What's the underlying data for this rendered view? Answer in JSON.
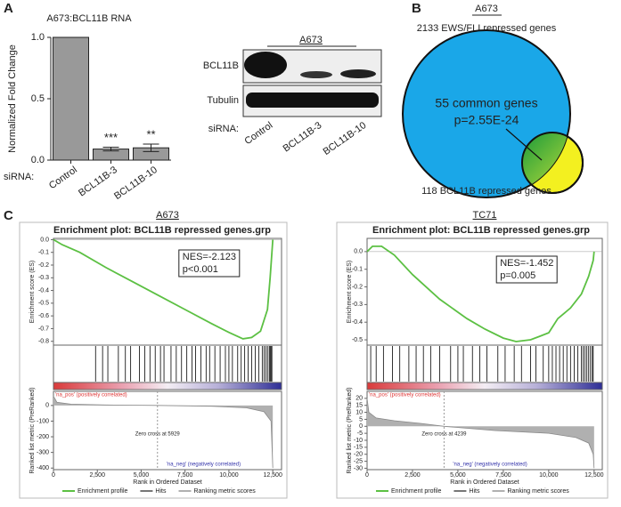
{
  "panel_labels": [
    "A",
    "B",
    "C"
  ],
  "chart_data": [
    {
      "type": "bar",
      "title": "A673:BCL11B RNA",
      "ylabel": "Normalized Fold Change",
      "xlabel": "siRNA:",
      "categories": [
        "Control",
        "BCL11B-3",
        "BCL11B-10"
      ],
      "values": [
        1.0,
        0.09,
        0.1
      ],
      "errors": [
        null,
        0.015,
        0.03
      ],
      "significance": [
        null,
        "***",
        "**"
      ],
      "color": "#999999",
      "ylim": [
        0,
        1
      ],
      "yticks": [
        {
          "value": 0,
          "label": "0.0"
        },
        0.5,
        {
          "value": 1,
          "label": "1.0"
        }
      ]
    },
    {
      "type": "gsea",
      "header": "A673",
      "title": "Enrichment plot: BCL11B repressed genes.grp",
      "stats": [
        "NES=-2.123",
        "p<0.001"
      ],
      "ylabel_es": "Enrichment score (ES)",
      "ylabel_metric": "Ranked list metric (PreRanked)",
      "xlabel": "Rank in Ordered Dataset",
      "pos_label": "'na_pos' (positively correlated)",
      "neg_label": "'na_neg' (negatively correlated)",
      "zero_cross": {
        "value": 5929,
        "label": "Zero cross at 5929"
      },
      "xlim": [
        0,
        13000
      ],
      "xticks": [
        0,
        {
          "value": 2500,
          "label": "2,500"
        },
        {
          "value": 5000,
          "label": "5,000"
        },
        {
          "value": 7500,
          "label": "7,500"
        },
        {
          "value": 10000,
          "label": "10,000"
        },
        {
          "value": 12500,
          "label": "12,500"
        }
      ],
      "es_ylim": [
        -0.83,
        0.01
      ],
      "es_yticks": [
        {
          "value": 0,
          "label": "0.0"
        },
        -0.1,
        -0.2,
        -0.3,
        -0.4,
        -0.5,
        -0.6,
        -0.7,
        -0.8
      ],
      "metric_ylim": [
        -410,
        90
      ],
      "metric_yticks": [
        0,
        -100,
        -200,
        -300,
        -400
      ],
      "series": [
        {
          "name": "Enrichment profile",
          "color": "#5cc043",
          "axis": "es",
          "x": [
            0,
            500,
            1500,
            3000,
            4500,
            6000,
            7500,
            9000,
            10000,
            10800,
            11300,
            11800,
            12200,
            12350,
            12450,
            12500
          ],
          "values": [
            0,
            -0.04,
            -0.1,
            -0.22,
            -0.33,
            -0.44,
            -0.55,
            -0.66,
            -0.73,
            -0.78,
            -0.77,
            -0.72,
            -0.55,
            -0.3,
            -0.1,
            0
          ]
        },
        {
          "name": "Hits",
          "color": "#000000",
          "axis": "hits",
          "x": [
            2400,
            2800,
            3100,
            3700,
            4100,
            4400,
            4900,
            5200,
            5500,
            5800,
            6100,
            6300,
            6700,
            7000,
            7300,
            7600,
            7900,
            8100,
            8400,
            8700,
            8900,
            9200,
            9500,
            9800,
            10000,
            10200,
            10500,
            10700,
            10900,
            11100,
            11300,
            11500,
            11700,
            11900,
            12000,
            12100,
            12200,
            12300,
            12350,
            12400,
            12450
          ]
        },
        {
          "name": "Ranking metric scores",
          "color": "#b0b0b0",
          "axis": "metric",
          "x": [
            0,
            200,
            1000,
            3000,
            5929,
            9000,
            11000,
            12000,
            12400,
            12500
          ],
          "values": [
            60,
            20,
            8,
            3,
            0,
            -5,
            -15,
            -40,
            -100,
            -400
          ]
        }
      ]
    },
    {
      "type": "gsea",
      "header": "TC71",
      "title": "Enrichment plot: BCL11B repressed genes.grp",
      "stats": [
        "NES=-1.452",
        "p=0.005"
      ],
      "ylabel_es": "Enrichment score (ES)",
      "ylabel_metric": "Ranked list metric (PreRanked)",
      "xlabel": "Rank in Ordered Dataset",
      "pos_label": "'na_pos' (positively correlated)",
      "neg_label": "'na_neg' (negatively correlated)",
      "zero_cross": {
        "value": 4239,
        "label": "Zero cross at 4239"
      },
      "xlim": [
        0,
        12950
      ],
      "xticks": [
        0,
        {
          "value": 2500,
          "label": "2,500"
        },
        {
          "value": 5000,
          "label": "5,000"
        },
        {
          "value": 7500,
          "label": "7,500"
        },
        {
          "value": 10000,
          "label": "10,000"
        },
        {
          "value": 12500,
          "label": "12,500"
        }
      ],
      "es_ylim": [
        -0.53,
        0.075
      ],
      "es_yticks": [
        {
          "value": 0,
          "label": "0.0"
        },
        -0.1,
        -0.2,
        -0.3,
        -0.4,
        -0.5
      ],
      "metric_ylim": [
        -31,
        25
      ],
      "metric_yticks": [
        20,
        15,
        10,
        5,
        0,
        -5,
        -10,
        -15,
        -20,
        -25,
        -30
      ],
      "series": [
        {
          "name": "Enrichment profile",
          "color": "#5cc043",
          "axis": "es",
          "x": [
            0,
            300,
            800,
            1500,
            2500,
            4000,
            5500,
            6500,
            7500,
            8200,
            9000,
            9500,
            10000,
            10500,
            11200,
            11800,
            12200,
            12450,
            12500
          ],
          "values": [
            0,
            0.03,
            0.03,
            -0.02,
            -0.13,
            -0.27,
            -0.38,
            -0.44,
            -0.49,
            -0.51,
            -0.5,
            -0.48,
            -0.46,
            -0.38,
            -0.32,
            -0.24,
            -0.14,
            -0.05,
            0
          ]
        },
        {
          "name": "Hits",
          "color": "#000000",
          "axis": "hits",
          "x": [
            200,
            500,
            900,
            1400,
            1800,
            2300,
            2700,
            3100,
            3500,
            4000,
            4600,
            5000,
            5300,
            5800,
            6200,
            6600,
            7200,
            7600,
            8100,
            8500,
            9000,
            9300,
            9700,
            10000,
            10200,
            10400,
            10600,
            10800,
            11000,
            11200,
            11400,
            11600,
            11800,
            11900,
            12000,
            12100,
            12200,
            12300,
            12400,
            12450
          ]
        },
        {
          "name": "Ranking metric scores",
          "color": "#b0b0b0",
          "axis": "metric",
          "x": [
            0,
            100,
            500,
            1500,
            3000,
            4239,
            7000,
            10000,
            11500,
            12200,
            12450,
            12500
          ],
          "values": [
            20,
            10,
            6,
            4,
            2,
            0,
            -3,
            -5,
            -8,
            -12,
            -20,
            -30
          ]
        }
      ]
    }
  ],
  "western_blot": {
    "title": "A673",
    "rows": [
      "BCL11B",
      "Tubulin"
    ],
    "lanes": [
      "Control",
      "BCL11B-3",
      "BCL11B-10"
    ],
    "lane_prefix": "siRNA:"
  },
  "venn": {
    "title": "A673",
    "set1": "2133 EWS/FLI repressed genes",
    "set2": "118 BCL11B repressed genes",
    "overlap": "55 common genes",
    "pvalue": "p=2.55E-24"
  }
}
